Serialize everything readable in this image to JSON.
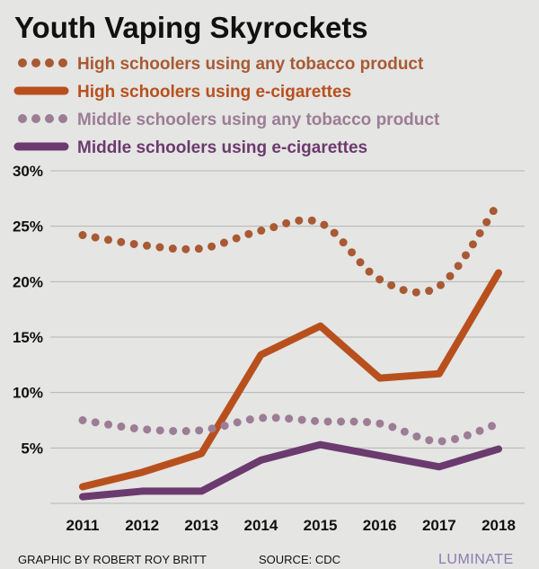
{
  "chart_data": {
    "type": "line",
    "title": "Youth Vaping Skyrockets",
    "x": [
      "2011",
      "2012",
      "2013",
      "2014",
      "2015",
      "2016",
      "2017",
      "2018"
    ],
    "y_ticks": [
      "30%",
      "25%",
      "20%",
      "15%",
      "10%",
      "5%"
    ],
    "y_tick_values": [
      30,
      25,
      20,
      15,
      10,
      5
    ],
    "ylim": [
      0,
      30
    ],
    "grid": true,
    "legend_position": "top",
    "series": [
      {
        "name": "High schoolers using any tobacco product",
        "values": [
          24.2,
          23.3,
          23.0,
          24.6,
          25.3,
          20.2,
          19.6,
          27.1
        ],
        "color": "#a85a34",
        "style": "dotted"
      },
      {
        "name": "High schoolers using e-cigarettes",
        "values": [
          1.5,
          2.8,
          4.5,
          13.4,
          16.0,
          11.3,
          11.7,
          20.8
        ],
        "color": "#b8501e",
        "style": "solid"
      },
      {
        "name": "Middle schoolers using any tobacco product",
        "values": [
          7.5,
          6.7,
          6.6,
          7.7,
          7.4,
          7.2,
          5.6,
          7.2
        ],
        "color": "#9c7d95",
        "style": "dotted"
      },
      {
        "name": "Middle schoolers using e-cigarettes",
        "values": [
          0.6,
          1.1,
          1.1,
          3.9,
          5.3,
          4.3,
          3.3,
          4.9
        ],
        "color": "#6b3a6e",
        "style": "solid"
      }
    ]
  },
  "footer": {
    "credit": "GRAPHIC BY ROBERT ROY BRITT",
    "source": "SOURCE: CDC",
    "brand": "LUMINATE"
  },
  "colors": {
    "background": "#e5e5e3",
    "grid": "#b5b5b3",
    "text": "#111111",
    "brand": "#8a7bb0"
  }
}
